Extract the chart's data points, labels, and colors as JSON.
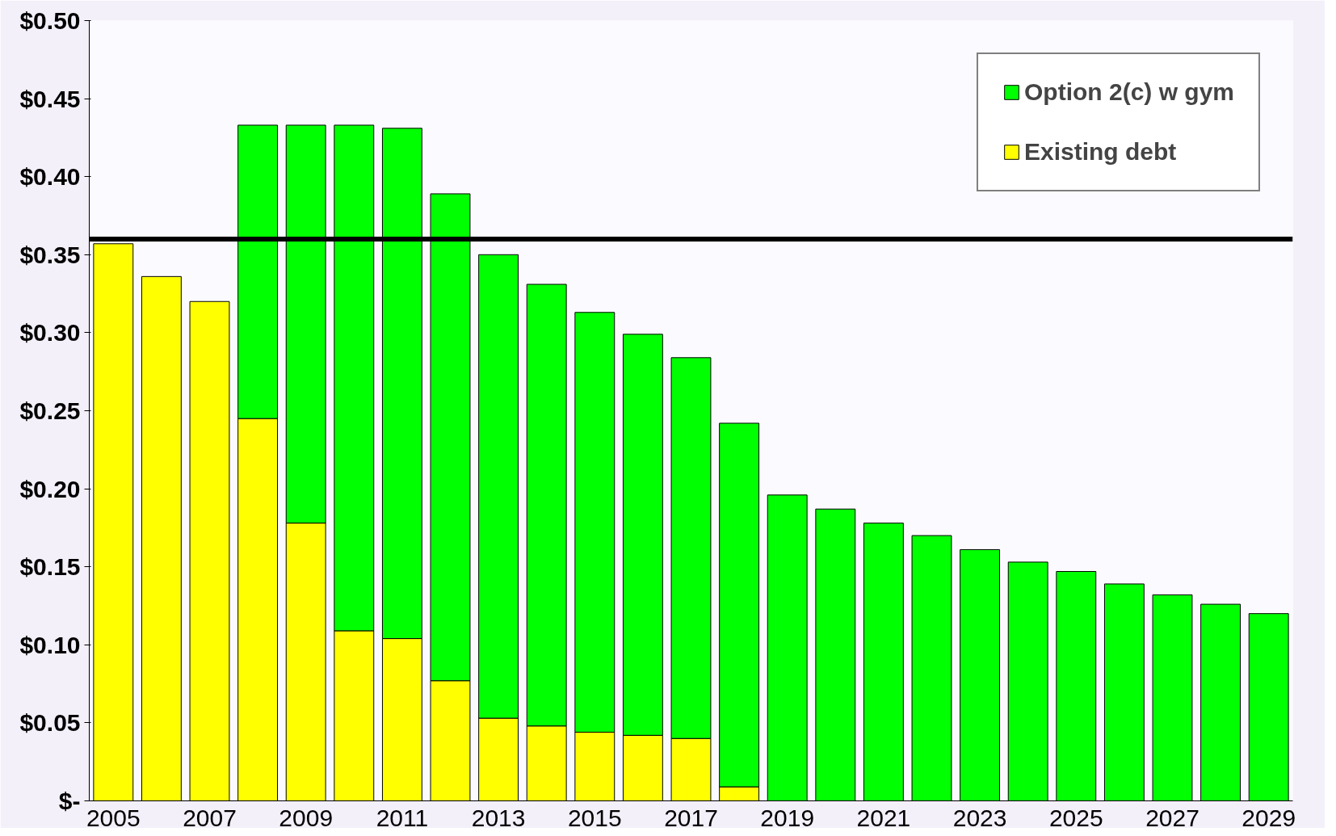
{
  "chart_data": {
    "type": "bar",
    "stacked": true,
    "categories": [
      "2005",
      null,
      "2007",
      null,
      "2009",
      null,
      "2011",
      null,
      "2013",
      null,
      "2015",
      null,
      "2017",
      null,
      "2019",
      null,
      "2021",
      null,
      "2023",
      null,
      "2025",
      null,
      "2027",
      null,
      "2029"
    ],
    "series": [
      {
        "name": "Existing debt",
        "color": "#ffff00",
        "values": [
          0.357,
          0.336,
          0.32,
          0.245,
          0.178,
          0.109,
          0.104,
          0.077,
          0.053,
          0.048,
          0.044,
          0.042,
          0.04,
          0.009,
          null,
          null,
          null,
          null,
          null,
          null,
          null,
          null,
          null,
          null,
          null
        ]
      },
      {
        "name": "Option 2(c) w gym",
        "color": "#00ff00",
        "values": [
          null,
          null,
          null,
          0.188,
          0.255,
          0.324,
          0.327,
          0.312,
          0.297,
          0.283,
          0.269,
          0.257,
          0.244,
          0.233,
          0.196,
          0.187,
          0.178,
          0.17,
          0.161,
          0.153,
          0.147,
          0.139,
          0.132,
          0.126,
          0.12
        ]
      }
    ],
    "ylim": [
      0,
      0.5
    ],
    "yticks": [
      {
        "value": 0,
        "label": "$-"
      },
      {
        "value": 0.05,
        "label": "$0.05"
      },
      {
        "value": 0.1,
        "label": "$0.10"
      },
      {
        "value": 0.15,
        "label": "$0.15"
      },
      {
        "value": 0.2,
        "label": "$0.20"
      },
      {
        "value": 0.25,
        "label": "$0.25"
      },
      {
        "value": 0.3,
        "label": "$0.30"
      },
      {
        "value": 0.35,
        "label": "$0.35"
      },
      {
        "value": 0.4,
        "label": "$0.40"
      },
      {
        "value": 0.45,
        "label": "$0.45"
      },
      {
        "value": 0.5,
        "label": "$0.50"
      }
    ],
    "ref_lines": [
      {
        "axis": "y",
        "value": 0.36,
        "color": "#000000"
      }
    ],
    "legend": "top right",
    "grid": false
  }
}
